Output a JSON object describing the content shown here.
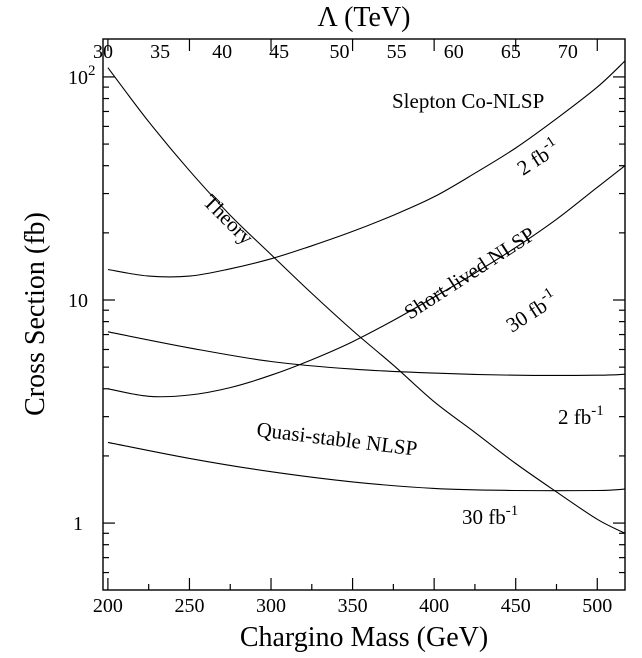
{
  "chart_data": {
    "type": "line",
    "xlabel": "Chargino Mass (GeV)",
    "top_xlabel": "Λ (TeV)",
    "ylabel": "Cross Section (fb)",
    "xlim": [
      197,
      517
    ],
    "ylim_log10": [
      -0.3,
      2.17
    ],
    "y_scale": "log",
    "grid": false,
    "x_ticks": [
      {
        "value": 200,
        "label": "200"
      },
      {
        "value": 250,
        "label": "250"
      },
      {
        "value": 300,
        "label": "300"
      },
      {
        "value": 350,
        "label": "350"
      },
      {
        "value": 400,
        "label": "400"
      },
      {
        "value": 450,
        "label": "450"
      },
      {
        "value": 500,
        "label": "500"
      }
    ],
    "top_ticks": [
      {
        "x": 197,
        "label": "30"
      },
      {
        "x": 232,
        "label": "35"
      },
      {
        "x": 270,
        "label": "40"
      },
      {
        "x": 305,
        "label": "45"
      },
      {
        "x": 342,
        "label": "50"
      },
      {
        "x": 377,
        "label": "55"
      },
      {
        "x": 412,
        "label": "60"
      },
      {
        "x": 447,
        "label": "65"
      },
      {
        "x": 482,
        "label": "70"
      }
    ],
    "y_ticks": [
      {
        "value": 1,
        "label": "1"
      },
      {
        "value": 10,
        "label": "10"
      },
      {
        "value": 100,
        "label": "10",
        "sup": "2"
      }
    ],
    "series": [
      {
        "name": "Theory",
        "x": [
          200,
          225,
          250,
          275,
          300,
          325,
          350,
          375,
          400,
          425,
          450,
          475,
          500,
          517
        ],
        "y": [
          110,
          63,
          38,
          24,
          16,
          10.7,
          7.3,
          5.1,
          3.5,
          2.55,
          1.85,
          1.38,
          1.04,
          0.9
        ]
      },
      {
        "name": "Slepton Co-NLSP 2 fb-1",
        "x": [
          200,
          225,
          250,
          275,
          300,
          325,
          350,
          375,
          400,
          425,
          450,
          475,
          500,
          517
        ],
        "y": [
          13.7,
          12.8,
          12.8,
          13.8,
          15.3,
          17.5,
          20.3,
          24,
          29,
          37,
          48,
          65,
          90,
          118
        ]
      },
      {
        "name": "Short-lived NLSP 30 fb-1",
        "x": [
          200,
          225,
          250,
          275,
          300,
          325,
          350,
          375,
          400,
          425,
          450,
          475,
          500,
          517
        ],
        "y": [
          4.0,
          3.7,
          3.75,
          4.05,
          4.6,
          5.4,
          6.5,
          8.1,
          10.3,
          13.2,
          17.2,
          23,
          32,
          40
        ]
      },
      {
        "name": "Quasi-stable NLSP 2 fb-1",
        "x": [
          200,
          250,
          300,
          350,
          400,
          450,
          500,
          517
        ],
        "y": [
          7.2,
          6.1,
          5.3,
          4.9,
          4.7,
          4.6,
          4.6,
          4.65
        ]
      },
      {
        "name": "Quasi-stable NLSP 30 fb-1",
        "x": [
          200,
          250,
          300,
          350,
          400,
          450,
          500,
          517
        ],
        "y": [
          2.3,
          1.95,
          1.7,
          1.53,
          1.43,
          1.4,
          1.4,
          1.42
        ]
      }
    ],
    "annotations": [
      {
        "key": "slepton",
        "text": "Slepton Co-NLSP"
      },
      {
        "key": "slepton_lumi",
        "text": "2 fb",
        "sup": "-1"
      },
      {
        "key": "theory",
        "text": "Theory"
      },
      {
        "key": "shortlived",
        "text": "Short-lived NLSP"
      },
      {
        "key": "shortlived_lumi",
        "text": "30 fb",
        "sup": "-1"
      },
      {
        "key": "quasi_lumi_2",
        "text": "2 fb",
        "sup": "-1"
      },
      {
        "key": "quasi",
        "text": "Quasi-stable NLSP"
      },
      {
        "key": "quasi_lumi_30",
        "text": "30 fb",
        "sup": "-1"
      }
    ]
  }
}
